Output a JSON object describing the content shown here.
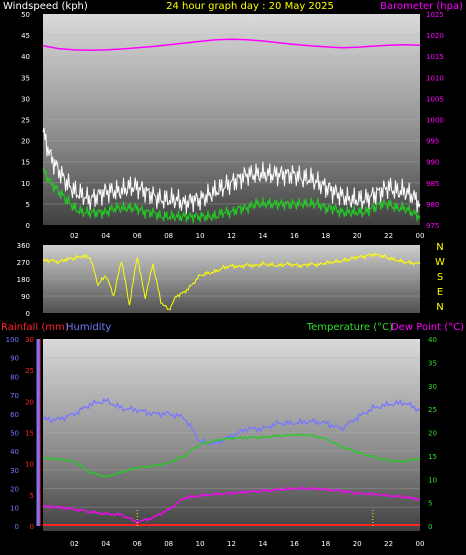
{
  "header": {
    "left": "Windspeed (kph)",
    "center": "24 hour graph day : 20 May 2025",
    "right": "Barometer (hpa)"
  },
  "wind_axis_ticks": [
    "50",
    "45",
    "40",
    "35",
    "30",
    "25",
    "20",
    "15",
    "10",
    "5",
    "0"
  ],
  "baro_axis_ticks": [
    "1025",
    "1020",
    "1015",
    "1010",
    "1005",
    "1000",
    "995",
    "990",
    "985",
    "980",
    "975"
  ],
  "dir_axis_ticks": [
    "360",
    "270",
    "180",
    "90",
    "0"
  ],
  "compass_labels": [
    "N",
    "W",
    "S",
    "E",
    "N"
  ],
  "lower_header": {
    "rainfall": "Rainfall (mm)",
    "humidity": "Humidity",
    "temperature": "Temperature (°C)",
    "dewpoint": "Dew Point (°C)"
  },
  "humidity_axis_ticks": [
    "100",
    "90",
    "80",
    "70",
    "60",
    "50",
    "40",
    "30",
    "20",
    "10",
    "0"
  ],
  "rain_axis_ticks": [
    "30",
    "25",
    "20",
    "15",
    "10",
    "5",
    "0"
  ],
  "temp_axis_ticks": [
    "40",
    "35",
    "30",
    "25",
    "20",
    "15",
    "10",
    "5",
    "0"
  ],
  "x_tick_labels": [
    "02",
    "04",
    "06",
    "08",
    "10",
    "12",
    "14",
    "16",
    "18",
    "20",
    "22",
    "00"
  ],
  "colors": {
    "wind_gust": "#ffffff",
    "wind_avg": "#22cc22",
    "barometer": "#ff00ff",
    "direction": "#ffff00",
    "humidity": "#7777ff",
    "temperature": "#22cc22",
    "dewpoint": "#ff00ff",
    "rainfall": "#ff2222",
    "tick_green": "#33dd33"
  },
  "chart_data": [
    {
      "type": "line",
      "title": "24 hour graph day : 20 May 2025",
      "x_unit": "hour",
      "xlim": [
        0,
        24
      ],
      "y_left": {
        "label": "Windspeed (kph)",
        "ylim": [
          0,
          50
        ]
      },
      "y_right": {
        "label": "Barometer (hpa)",
        "ylim": [
          975,
          1025
        ]
      },
      "series": [
        {
          "name": "Windspeed (kph)",
          "axis": "left",
          "x": [
            0,
            0.5,
            1,
            1.5,
            2,
            2.5,
            3,
            3.5,
            4,
            4.5,
            5,
            5.5,
            6,
            6.5,
            7,
            7.5,
            8,
            8.5,
            9,
            9.5,
            10,
            10.5,
            11,
            11.5,
            12,
            12.5,
            13,
            13.5,
            14,
            14.5,
            15,
            15.5,
            16,
            16.5,
            17,
            17.5,
            18,
            18.5,
            19,
            19.5,
            20,
            20.5,
            21,
            21.5,
            22,
            22.5,
            23,
            23.5,
            24
          ],
          "y": [
            13,
            10,
            8,
            6,
            4,
            3,
            3,
            3,
            3,
            4,
            4,
            4,
            4,
            3,
            3,
            2,
            2,
            2,
            2,
            2,
            2,
            2,
            2,
            3,
            3,
            4,
            4,
            5,
            5,
            5,
            5,
            5,
            5,
            5,
            5,
            5,
            4,
            4,
            3,
            3,
            3,
            3,
            4,
            5,
            5,
            4,
            4,
            3,
            2
          ]
        },
        {
          "name": "Wind gust",
          "axis": "left",
          "x": [
            0,
            0.5,
            1,
            1.5,
            2,
            2.5,
            3,
            3.5,
            4,
            4.5,
            5,
            5.5,
            6,
            6.5,
            7,
            7.5,
            8,
            8.5,
            9,
            9.5,
            10,
            10.5,
            11,
            11.5,
            12,
            12.5,
            13,
            13.5,
            14,
            14.5,
            15,
            15.5,
            16,
            16.5,
            17,
            17.5,
            18,
            18.5,
            19,
            19.5,
            20,
            20.5,
            21,
            21.5,
            22,
            22.5,
            23,
            23.5,
            24
          ],
          "y": [
            22,
            16,
            13,
            10,
            8,
            7,
            6,
            7,
            8,
            8,
            8,
            9,
            9,
            8,
            7,
            6,
            6,
            6,
            5,
            6,
            6,
            7,
            8,
            9,
            10,
            11,
            12,
            12,
            12,
            12,
            12,
            12,
            12,
            11,
            11,
            10,
            9,
            8,
            7,
            6,
            6,
            6,
            7,
            8,
            9,
            8,
            8,
            7,
            5
          ]
        },
        {
          "name": "Barometer (hpa)",
          "axis": "right",
          "x": [
            0,
            1,
            2,
            3,
            4,
            5,
            6,
            7,
            8,
            9,
            10,
            11,
            12,
            13,
            14,
            15,
            16,
            17,
            18,
            19,
            20,
            21,
            22,
            23,
            24
          ],
          "y": [
            1017.5,
            1016.8,
            1016.5,
            1016.4,
            1016.5,
            1016.7,
            1017.0,
            1017.3,
            1017.7,
            1018.1,
            1018.5,
            1018.9,
            1019.0,
            1018.9,
            1018.6,
            1018.2,
            1017.8,
            1017.5,
            1017.2,
            1017.0,
            1017.1,
            1017.4,
            1017.6,
            1017.7,
            1017.6
          ]
        }
      ]
    },
    {
      "type": "line",
      "x_unit": "hour",
      "xlim": [
        0,
        24
      ],
      "y_left": {
        "ylim": [
          0,
          360
        ]
      },
      "compass": [
        "N",
        "W",
        "S",
        "E",
        "N"
      ],
      "series": [
        {
          "name": "Wind direction",
          "axis": "left",
          "x": [
            0,
            0.5,
            1,
            1.5,
            2,
            2.5,
            3,
            3.5,
            4,
            4.5,
            5,
            5.5,
            6,
            6.5,
            7,
            7.5,
            8,
            8.5,
            9,
            9.5,
            10,
            10.5,
            11,
            11.5,
            12,
            12.5,
            13,
            13.5,
            14,
            14.5,
            15,
            15.5,
            16,
            16.5,
            17,
            17.5,
            18,
            18.5,
            19,
            19.5,
            20,
            20.5,
            21,
            21.5,
            22,
            22.5,
            23,
            23.5,
            24
          ],
          "y": [
            275,
            280,
            270,
            285,
            290,
            300,
            295,
            150,
            200,
            90,
            280,
            40,
            300,
            80,
            260,
            60,
            15,
            90,
            110,
            150,
            200,
            210,
            220,
            240,
            250,
            245,
            255,
            250,
            260,
            255,
            250,
            260,
            255,
            250,
            260,
            255,
            265,
            270,
            275,
            285,
            295,
            300,
            310,
            305,
            290,
            280,
            270,
            265,
            260
          ]
        }
      ]
    },
    {
      "type": "line",
      "x_unit": "hour",
      "xlim": [
        0,
        24
      ],
      "y_left": {
        "label": "Humidity",
        "ylim": [
          0,
          100
        ]
      },
      "y_rain": {
        "label": "Rainfall (mm)",
        "ylim": [
          0,
          30
        ]
      },
      "y_right": {
        "label": "Temperature (°C)",
        "ylim": [
          0,
          40
        ]
      },
      "series": [
        {
          "name": "Humidity",
          "axis": "left",
          "x": [
            0,
            1,
            2,
            3,
            4,
            5,
            6,
            7,
            8,
            9,
            10,
            11,
            12,
            13,
            14,
            15,
            16,
            17,
            18,
            19,
            20,
            21,
            22,
            23,
            24
          ],
          "y": [
            57,
            57,
            60,
            65,
            67,
            63,
            62,
            60,
            60,
            58,
            45,
            44,
            48,
            52,
            52,
            55,
            55,
            56,
            55,
            52,
            58,
            63,
            65,
            66,
            62
          ]
        },
        {
          "name": "Temperature (°C)",
          "axis": "right",
          "x": [
            0,
            1,
            2,
            3,
            4,
            5,
            6,
            7,
            8,
            9,
            10,
            11,
            12,
            13,
            14,
            15,
            16,
            17,
            18,
            19,
            20,
            21,
            22,
            23,
            24
          ],
          "y": [
            14.5,
            14.3,
            13.8,
            11.5,
            10.5,
            11.5,
            12.5,
            12.8,
            13.5,
            15.0,
            17.5,
            18.3,
            18.8,
            18.9,
            19.0,
            19.3,
            19.5,
            19.4,
            18.7,
            17.0,
            15.8,
            14.8,
            14.0,
            13.8,
            14.5
          ]
        },
        {
          "name": "Dew Point (°C)",
          "axis": "right",
          "x": [
            0,
            1,
            2,
            3,
            4,
            5,
            6,
            7,
            8,
            9,
            10,
            11,
            12,
            13,
            14,
            15,
            16,
            17,
            18,
            19,
            20,
            21,
            22,
            23,
            24
          ],
          "y": [
            4.2,
            4.0,
            3.6,
            3.0,
            2.6,
            2.4,
            0.8,
            1.8,
            3.5,
            6.0,
            6.5,
            6.8,
            7.0,
            7.3,
            7.5,
            7.8,
            8.0,
            8.0,
            7.8,
            7.5,
            7.0,
            6.8,
            6.5,
            6.2,
            5.7
          ]
        },
        {
          "name": "Rainfall (mm)",
          "axis": "rain",
          "x": [
            0,
            6,
            12,
            18,
            24
          ],
          "y": [
            0,
            0,
            0,
            0,
            0
          ]
        }
      ]
    }
  ]
}
